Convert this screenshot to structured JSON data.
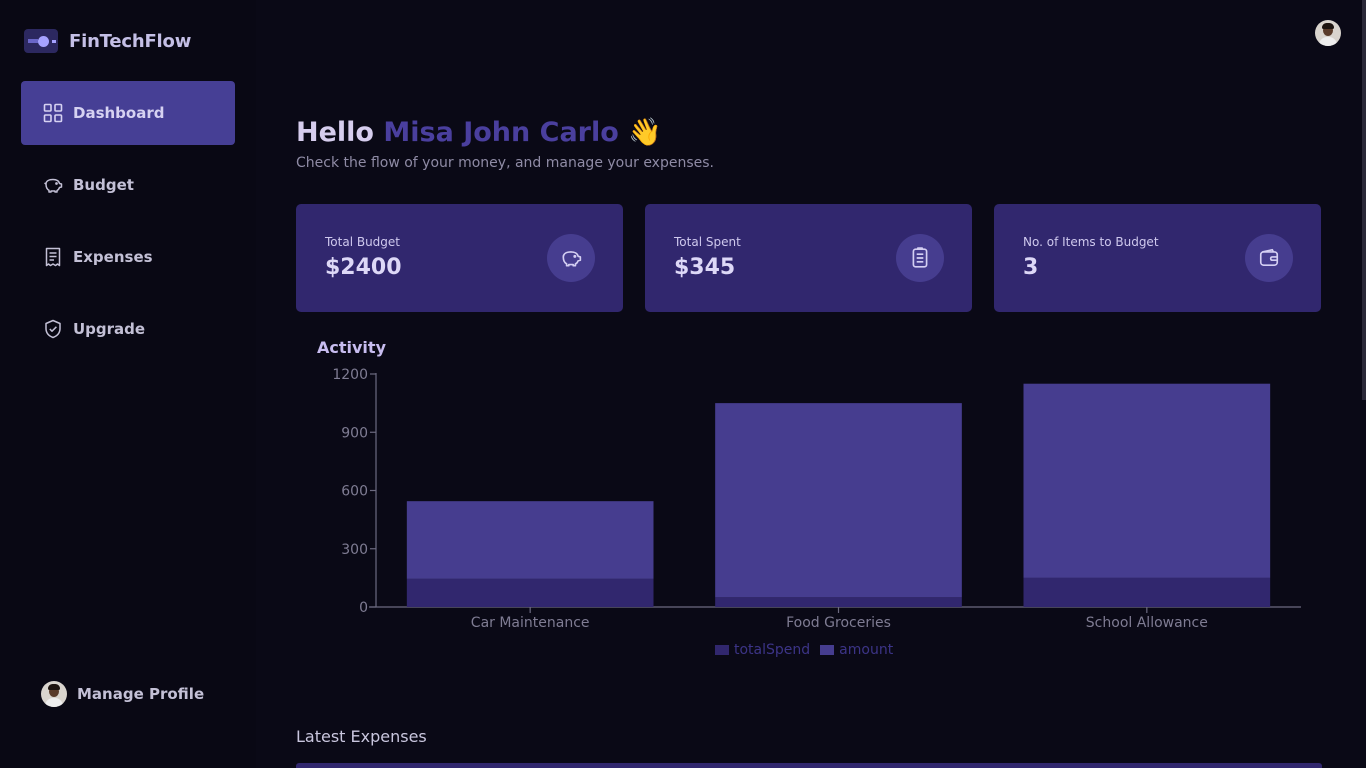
{
  "app": {
    "name": "FinTechFlow"
  },
  "sidebar": {
    "items": [
      {
        "label": "Dashboard",
        "icon": "grid-icon",
        "active": true
      },
      {
        "label": "Budget",
        "icon": "piggy-bank-icon",
        "active": false
      },
      {
        "label": "Expenses",
        "icon": "receipt-icon",
        "active": false
      },
      {
        "label": "Upgrade",
        "icon": "shield-check-icon",
        "active": false
      }
    ],
    "profile_label": "Manage Profile"
  },
  "header": {
    "greeting": "Hello",
    "user_name": "Misa John Carlo",
    "wave": "👋",
    "subtitle": "Check the flow of your money, and manage your expenses."
  },
  "cards": [
    {
      "label": "Total Budget",
      "value": "$2400",
      "icon": "piggy-bank-icon"
    },
    {
      "label": "Total Spent",
      "value": "$345",
      "icon": "receipt-icon"
    },
    {
      "label": "No. of Items to Budget",
      "value": "3",
      "icon": "wallet-icon"
    }
  ],
  "activity": {
    "title": "Activity"
  },
  "chart_data": {
    "type": "bar",
    "stacked": true,
    "categories": [
      "Car Maintenance",
      "Food Groceries",
      "School Allowance"
    ],
    "series": [
      {
        "name": "totalSpend",
        "values": [
          145,
          50,
          150
        ],
        "color": "#31276e"
      },
      {
        "name": "amount",
        "values": [
          400,
          1000,
          1000
        ],
        "color": "#463d8f"
      }
    ],
    "ylim": [
      0,
      1200
    ],
    "yticks": [
      0,
      300,
      600,
      900,
      1200
    ],
    "legend": "bottom"
  },
  "latest": {
    "title": "Latest Expenses"
  },
  "colors": {
    "background": "#0a0916",
    "accent": "#463f95",
    "card": "#31276e"
  }
}
